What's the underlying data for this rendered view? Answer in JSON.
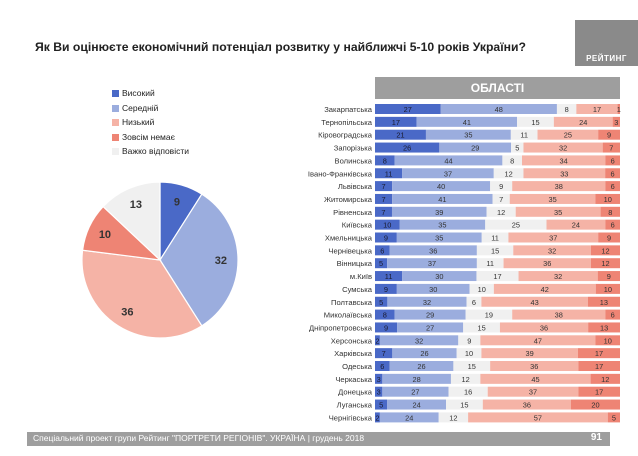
{
  "title": "Як Ви оцінюєте економічний потенціал розвитку у найближчі 5-10 років України?",
  "logo_text": "РЕЙТИНГ",
  "region_header": "ОБЛАСТІ",
  "footer": {
    "text": "Спеціальний проект групи Рейтинг \"ПОРТРЕТИ РЕГІОНІВ\". УКРАЇНА | грудень 2018",
    "page": "91"
  },
  "legend": [
    {
      "label": "Високий",
      "color": "#4a69c7"
    },
    {
      "label": "Середній",
      "color": "#9badde"
    },
    {
      "label": "Низький",
      "color": "#f5b3a6"
    },
    {
      "label": "Зовсім немає",
      "color": "#ee8474"
    },
    {
      "label": "Важко відповісти",
      "color": "#f0f0f0"
    }
  ],
  "chart_data": [
    {
      "type": "pie",
      "categories": [
        "Високий",
        "Середній",
        "Низький",
        "Зовсім немає",
        "Важко відповісти"
      ],
      "values": [
        9,
        32,
        36,
        10,
        13
      ],
      "colors": [
        "#4a69c7",
        "#9badde",
        "#f5b3a6",
        "#ee8474",
        "#f0f0f0"
      ]
    },
    {
      "type": "bar",
      "stacked": true,
      "orientation": "horizontal",
      "categories": [
        "Закарпатська",
        "Тернопільська",
        "Кіровоградська",
        "Запорізька",
        "Волинська",
        "Івано-Франківська",
        "Львівська",
        "Житомирська",
        "Рівненська",
        "Київська",
        "Хмельницька",
        "Чернівецька",
        "Вінницька",
        "м.Київ",
        "Сумська",
        "Полтавська",
        "Миколаївська",
        "Дніпропетровська",
        "Херсонська",
        "Харківська",
        "Одеська",
        "Черкаська",
        "Донецька",
        "Луганська",
        "Чернігівська"
      ],
      "series": [
        {
          "name": "Високий",
          "color": "#4a69c7",
          "values": [
            27,
            17,
            21,
            26,
            8,
            11,
            7,
            7,
            7,
            10,
            9,
            6,
            5,
            11,
            9,
            5,
            8,
            9,
            2,
            7,
            6,
            3,
            3,
            5,
            2
          ]
        },
        {
          "name": "Середній",
          "color": "#9badde",
          "values": [
            48,
            41,
            35,
            29,
            44,
            37,
            40,
            41,
            39,
            35,
            35,
            36,
            37,
            30,
            30,
            32,
            29,
            27,
            32,
            26,
            26,
            28,
            27,
            24,
            24
          ]
        },
        {
          "name": "Важко відповісти",
          "color": "#f0f0f0",
          "values": [
            8,
            15,
            11,
            5,
            8,
            12,
            9,
            7,
            12,
            25,
            11,
            15,
            11,
            17,
            10,
            6,
            19,
            15,
            9,
            10,
            15,
            12,
            16,
            15,
            12
          ]
        },
        {
          "name": "Низький",
          "color": "#f5b3a6",
          "values": [
            17,
            24,
            25,
            32,
            34,
            33,
            38,
            35,
            35,
            24,
            37,
            32,
            36,
            32,
            42,
            43,
            38,
            36,
            47,
            39,
            36,
            45,
            37,
            36,
            57
          ]
        },
        {
          "name": "Зовсім немає",
          "color": "#ee8474",
          "values": [
            1,
            3,
            9,
            7,
            6,
            6,
            6,
            10,
            8,
            6,
            9,
            12,
            12,
            9,
            10,
            13,
            6,
            13,
            10,
            17,
            17,
            12,
            17,
            20,
            5
          ]
        }
      ]
    }
  ]
}
